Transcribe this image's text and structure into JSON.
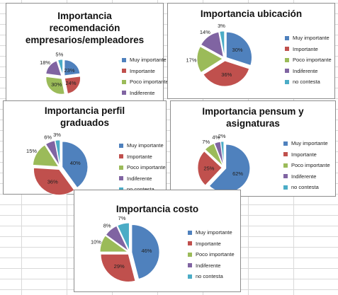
{
  "colors": {
    "muy_importante": "#4f81bd",
    "importante": "#c0504d",
    "poco_importante": "#9bbb59",
    "indiferente": "#8064a2",
    "no_contesta": "#4bacc6"
  },
  "legend_labels": [
    "Muy importante",
    "Importante",
    "Poco importante",
    "Indiferente",
    "no contesta"
  ],
  "chart_data": [
    {
      "type": "pie",
      "title": "Importancia recomendación empresarios/empleadores",
      "categories": [
        "Muy importante",
        "Importante",
        "Poco importante",
        "Indiferente",
        "no contesta"
      ],
      "legend": [
        "Muy importante",
        "Importante",
        "Poco importante",
        "Indiferente"
      ],
      "values": [
        23,
        24,
        30,
        18,
        5
      ],
      "labels": [
        "23%",
        "24%",
        "30%",
        "18%",
        "5%"
      ]
    },
    {
      "type": "pie",
      "title": "Importancia ubicación",
      "categories": [
        "Muy importante",
        "Importante",
        "Poco importante",
        "Indiferente",
        "no contesta"
      ],
      "legend": [
        "Muy importante",
        "Importante",
        "Poco importante",
        "Indiferente",
        "no contesta"
      ],
      "values": [
        30,
        36,
        17,
        14,
        3
      ],
      "labels": [
        "30%",
        "36%",
        "17%",
        "14%",
        "3%"
      ]
    },
    {
      "type": "pie",
      "title": "Importancia perfil graduados",
      "categories": [
        "Muy importante",
        "Importante",
        "Poco importante",
        "Indiferente",
        "no contesta"
      ],
      "legend": [
        "Muy importante",
        "Importante",
        "Poco importante",
        "Indiferente",
        "no contesta"
      ],
      "values": [
        40,
        36,
        15,
        6,
        3
      ],
      "labels": [
        "40%",
        "36%",
        "15%",
        "6%",
        "3%"
      ]
    },
    {
      "type": "pie",
      "title": "Importancia pensum y asignaturas",
      "categories": [
        "Muy importante",
        "Importante",
        "Poco importante",
        "Indiferente",
        "no contesta"
      ],
      "legend": [
        "Muy importante",
        "Importante",
        "Poco importante",
        "Indiferente",
        "no contesta"
      ],
      "values": [
        62,
        25,
        7,
        4,
        2
      ],
      "labels": [
        "62%",
        "25%",
        "7%",
        "4%",
        "2%"
      ]
    },
    {
      "type": "pie",
      "title": "Importancia costo",
      "categories": [
        "Muy importante",
        "Importante",
        "Poco importante",
        "Indiferente",
        "no contesta"
      ],
      "legend": [
        "Muy importante",
        "Importante",
        "Poco importante",
        "Indiferente",
        "no contesta"
      ],
      "values": [
        46,
        29,
        10,
        8,
        7
      ],
      "labels": [
        "46%",
        "29%",
        "10%",
        "8%",
        "7%"
      ]
    }
  ]
}
